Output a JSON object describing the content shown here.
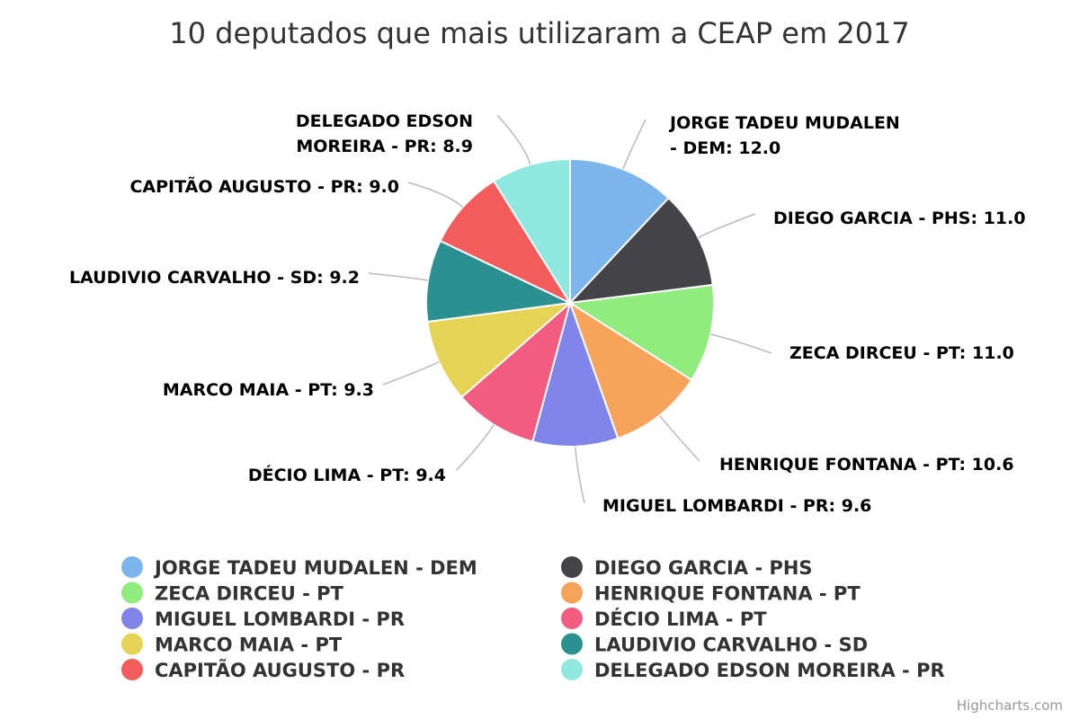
{
  "chart_data": {
    "type": "pie",
    "title": "10 deputados que mais utilizaram a CEAP em 2017",
    "legend_position": "bottom",
    "credits": "Highcharts.com",
    "slices": [
      {
        "name": "JORGE TADEU MUDALEN - DEM",
        "value": 12.0,
        "label": [
          "JORGE TADEU MUDALEN",
          "- DEM: 12.0"
        ],
        "color": "#7cb5ec"
      },
      {
        "name": "DIEGO GARCIA - PHS",
        "value": 11.0,
        "label": [
          "DIEGO GARCIA - PHS: 11.0"
        ],
        "color": "#434348"
      },
      {
        "name": "ZECA DIRCEU - PT",
        "value": 11.0,
        "label": [
          "ZECA DIRCEU - PT: 11.0"
        ],
        "color": "#90ed7d"
      },
      {
        "name": "HENRIQUE FONTANA - PT",
        "value": 10.6,
        "label": [
          "HENRIQUE FONTANA - PT: 10.6"
        ],
        "color": "#f7a35c"
      },
      {
        "name": "MIGUEL LOMBARDI - PR",
        "value": 9.6,
        "label": [
          "MIGUEL LOMBARDI - PR: 9.6"
        ],
        "color": "#8085e9"
      },
      {
        "name": "DÉCIO LIMA - PT",
        "value": 9.4,
        "label": [
          "DÉCIO LIMA - PT: 9.4"
        ],
        "color": "#f15c80"
      },
      {
        "name": "MARCO MAIA - PT",
        "value": 9.3,
        "label": [
          "MARCO MAIA - PT: 9.3"
        ],
        "color": "#e4d354"
      },
      {
        "name": "LAUDIVIO CARVALHO - SD",
        "value": 9.2,
        "label": [
          "LAUDIVIO CARVALHO - SD: 9.2"
        ],
        "color": "#2b908f"
      },
      {
        "name": "CAPITÃO AUGUSTO - PR",
        "value": 9.0,
        "label": [
          "CAPITÃO AUGUSTO - PR: 9.0"
        ],
        "color": "#f45b5b"
      },
      {
        "name": "DELEGADO EDSON MOREIRA - PR",
        "value": 8.9,
        "label": [
          "DELEGADO EDSON",
          "MOREIRA - PR: 8.9"
        ],
        "color": "#91e8e1"
      }
    ]
  }
}
